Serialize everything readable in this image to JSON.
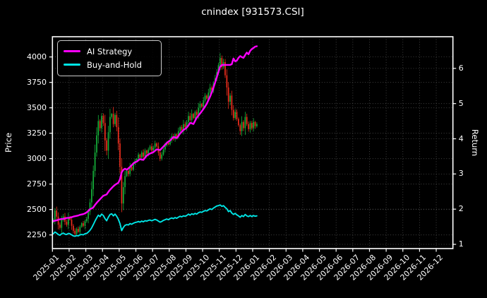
{
  "figure": {
    "title": "cnindex [931573.CSI]",
    "background": "#000000",
    "text_color": "#ffffff",
    "grid_color": "#4d4d4d",
    "spine_color": "#ffffff"
  },
  "legend": {
    "items": [
      {
        "label": "AI Strategy",
        "color": "#ff00ff"
      },
      {
        "label": "Buy-and-Hold",
        "color": "#00e5e5"
      }
    ]
  },
  "axes": {
    "x": {
      "tick_labels": [
        "2025-01",
        "2025-02",
        "2025-03",
        "2025-04",
        "2025-05",
        "2025-06",
        "2025-07",
        "2025-08",
        "2025-09",
        "2025-10",
        "2025-11",
        "2025-12",
        "2026-01",
        "2026-02",
        "2026-03",
        "2026-04",
        "2026-05",
        "2026-06",
        "2026-07",
        "2026-08",
        "2026-09",
        "2026-10",
        "2026-11",
        "2026-12"
      ]
    },
    "y_left": {
      "label": "Price",
      "ticks": [
        2250,
        2500,
        2750,
        3000,
        3250,
        3500,
        3750,
        4000
      ],
      "range": [
        2116,
        4199
      ]
    },
    "y_right": {
      "label": "Return",
      "ticks": [
        1,
        2,
        3,
        4,
        5,
        6
      ],
      "range": [
        0.88,
        6.9
      ]
    }
  },
  "chart_data": {
    "type": "mixed",
    "title": "cnindex [931573.CSI]",
    "x_domain": [
      "2025-01",
      "2026-12"
    ],
    "grid": true,
    "legend_position": "upper-left",
    "t_start_months": 0.05,
    "t_step_months": 0.1,
    "series": [
      {
        "name": "cnindex price",
        "type": "candlestick",
        "axis": "left",
        "up_color": "#15b03a",
        "down_color": "#ef2d1c",
        "close": [
          2395,
          2490,
          2430,
          2350,
          2320,
          2400,
          2430,
          2380,
          2350,
          2420,
          2400,
          2340,
          2290,
          2260,
          2310,
          2280,
          2330,
          2365,
          2340,
          2385,
          2410,
          2480,
          2570,
          2700,
          2880,
          3060,
          3230,
          3370,
          3300,
          3420,
          3350,
          3180,
          3080,
          3260,
          3410,
          3440,
          3340,
          3430,
          3310,
          3150,
          2920,
          2560,
          2720,
          2830,
          2880,
          2850,
          2920,
          2890,
          2950,
          2980,
          3000,
          3040,
          3010,
          3060,
          3020,
          3080,
          3050,
          3090,
          3120,
          3080,
          3110,
          3150,
          3120,
          3060,
          3000,
          3040,
          3090,
          3130,
          3160,
          3140,
          3180,
          3220,
          3190,
          3240,
          3210,
          3270,
          3310,
          3280,
          3340,
          3310,
          3360,
          3420,
          3380,
          3440,
          3400,
          3460,
          3430,
          3500,
          3540,
          3510,
          3570,
          3620,
          3590,
          3650,
          3700,
          3670,
          3740,
          3790,
          3850,
          3920,
          3990,
          3900,
          3950,
          3820,
          3700,
          3560,
          3620,
          3480,
          3400,
          3460,
          3390,
          3330,
          3270,
          3360,
          3300,
          3410,
          3340,
          3290,
          3350,
          3300,
          3360,
          3320,
          3340
        ]
      },
      {
        "name": "AI Strategy",
        "type": "line",
        "axis": "right",
        "color": "#ff00ff",
        "width": 2.4,
        "values": [
          1.66,
          1.67,
          1.68,
          1.7,
          1.71,
          1.72,
          1.72,
          1.73,
          1.75,
          1.75,
          1.76,
          1.77,
          1.79,
          1.8,
          1.81,
          1.82,
          1.84,
          1.85,
          1.86,
          1.88,
          1.91,
          1.95,
          2.0,
          2.02,
          2.05,
          2.12,
          2.18,
          2.23,
          2.28,
          2.33,
          2.38,
          2.4,
          2.42,
          2.49,
          2.55,
          2.6,
          2.65,
          2.69,
          2.72,
          2.75,
          2.85,
          3.05,
          3.12,
          3.15,
          3.12,
          3.16,
          3.2,
          3.25,
          3.3,
          3.33,
          3.35,
          3.39,
          3.42,
          3.41,
          3.4,
          3.46,
          3.52,
          3.55,
          3.58,
          3.6,
          3.62,
          3.66,
          3.7,
          3.69,
          3.68,
          3.73,
          3.78,
          3.83,
          3.88,
          3.92,
          3.95,
          4.0,
          4.05,
          4.04,
          4.02,
          4.08,
          4.15,
          4.2,
          4.25,
          4.28,
          4.32,
          4.38,
          4.45,
          4.44,
          4.42,
          4.51,
          4.6,
          4.66,
          4.72,
          4.78,
          4.85,
          4.92,
          5.0,
          5.1,
          5.2,
          5.32,
          5.45,
          5.6,
          5.75,
          5.9,
          6.05,
          6.1,
          6.1,
          6.1,
          6.1,
          6.1,
          6.1,
          6.12,
          6.28,
          6.2,
          6.22,
          6.3,
          6.35,
          6.32,
          6.3,
          6.38,
          6.45,
          6.4,
          6.5,
          6.55,
          6.58,
          6.62,
          6.63
        ]
      },
      {
        "name": "Buy-and-Hold",
        "type": "line",
        "axis": "right",
        "color": "#00e5e5",
        "width": 1.9,
        "values": [
          1.3,
          1.35,
          1.32,
          1.28,
          1.26,
          1.3,
          1.32,
          1.29,
          1.28,
          1.31,
          1.3,
          1.27,
          1.24,
          1.23,
          1.25,
          1.24,
          1.27,
          1.28,
          1.27,
          1.3,
          1.31,
          1.35,
          1.4,
          1.47,
          1.56,
          1.66,
          1.75,
          1.83,
          1.79,
          1.86,
          1.82,
          1.73,
          1.67,
          1.77,
          1.85,
          1.87,
          1.81,
          1.86,
          1.8,
          1.71,
          1.59,
          1.39,
          1.48,
          1.54,
          1.56,
          1.55,
          1.59,
          1.57,
          1.6,
          1.62,
          1.63,
          1.65,
          1.63,
          1.66,
          1.64,
          1.67,
          1.66,
          1.68,
          1.69,
          1.67,
          1.69,
          1.71,
          1.69,
          1.66,
          1.63,
          1.65,
          1.68,
          1.7,
          1.72,
          1.7,
          1.73,
          1.75,
          1.73,
          1.76,
          1.74,
          1.77,
          1.8,
          1.78,
          1.81,
          1.8,
          1.82,
          1.86,
          1.83,
          1.87,
          1.85,
          1.88,
          1.86,
          1.9,
          1.92,
          1.91,
          1.94,
          1.96,
          1.95,
          1.98,
          2.01,
          1.99,
          2.03,
          2.06,
          2.09,
          2.1,
          2.12,
          2.08,
          2.1,
          2.05,
          2.01,
          1.93,
          1.96,
          1.89,
          1.85,
          1.88,
          1.84,
          1.81,
          1.77,
          1.82,
          1.79,
          1.85,
          1.81,
          1.79,
          1.82,
          1.79,
          1.82,
          1.8,
          1.81
        ]
      }
    ]
  }
}
